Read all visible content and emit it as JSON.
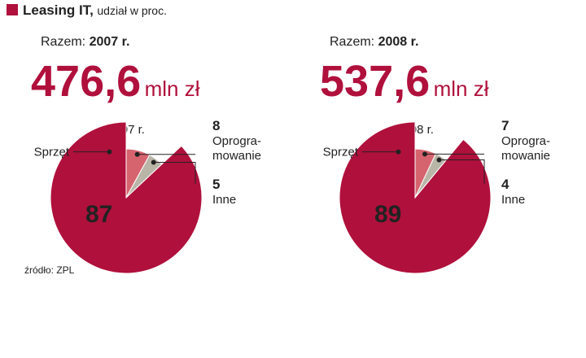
{
  "title": "Leasing IT,",
  "subtitle": "udział w proc.",
  "source": "źródło: ZPL",
  "chart_data": [
    {
      "type": "pie",
      "heading": "Razem:",
      "title": "2007 r.",
      "total": {
        "value": 476.6,
        "label": "476,6"
      },
      "total_unit": "mln zł",
      "categories": [
        "Sprzęt",
        [
          "Oprogra-",
          "mowanie"
        ],
        "Inne"
      ],
      "values": [
        87,
        8,
        5
      ],
      "colors": [
        "#b0103c",
        "#d6646f",
        "#b9b6a8"
      ]
    },
    {
      "type": "pie",
      "heading": "Razem:",
      "title": "2008 r.",
      "total": {
        "value": 537.6,
        "label": "537,6"
      },
      "total_unit": "mln zł",
      "categories": [
        "Sprzęt",
        [
          "Oprogra-",
          "mowanie"
        ],
        "Inne"
      ],
      "values": [
        89,
        7,
        4
      ],
      "colors": [
        "#b0103c",
        "#d6646f",
        "#b9b6a8"
      ]
    }
  ]
}
